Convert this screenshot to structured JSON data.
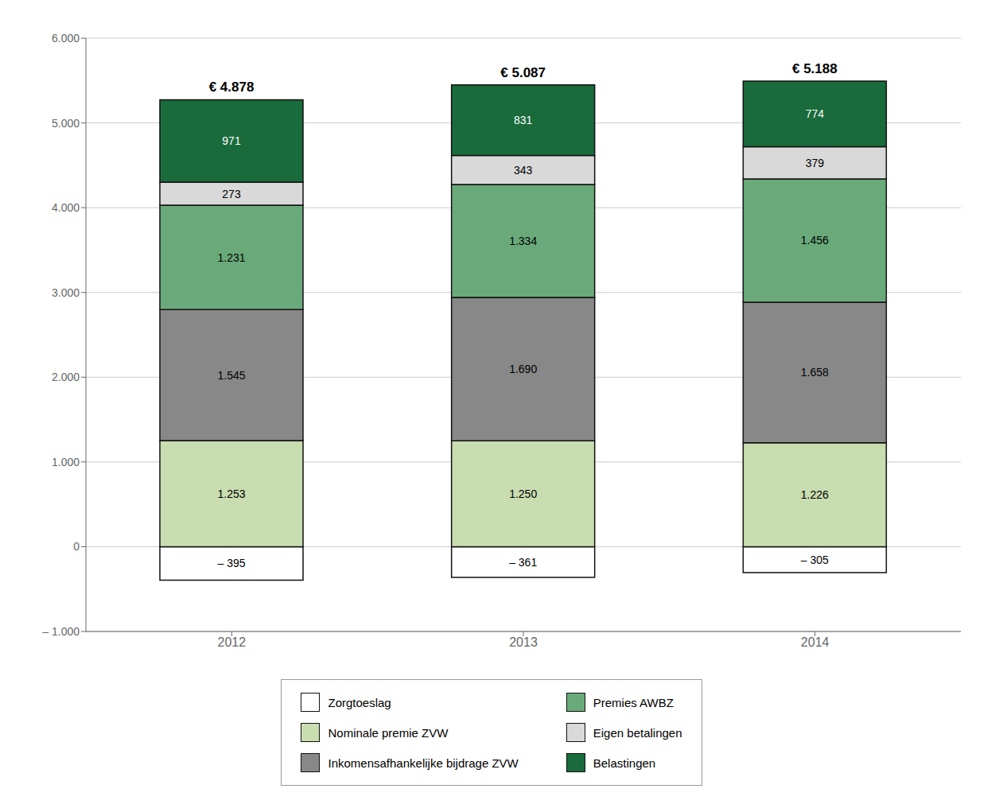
{
  "chart_data": {
    "type": "bar",
    "stacked": true,
    "categories": [
      "2012",
      "2013",
      "2014"
    ],
    "series": [
      {
        "name": "Zorgtoeslag",
        "color": "#ffffff",
        "values": [
          -395,
          -361,
          -305
        ],
        "value_labels": [
          "– 395",
          "– 361",
          "– 305"
        ]
      },
      {
        "name": "Nominale premie ZVW",
        "color": "#c8ddb0",
        "values": [
          1253,
          1250,
          1226
        ],
        "value_labels": [
          "1.253",
          "1.250",
          "1.226"
        ]
      },
      {
        "name": "Inkomensafhankelijke bijdrage ZVW",
        "color": "#888888",
        "values": [
          1545,
          1690,
          1658
        ],
        "value_labels": [
          "1.545",
          "1.690",
          "1.658"
        ]
      },
      {
        "name": "Premies AWBZ",
        "color": "#6aaa7a",
        "values": [
          1231,
          1334,
          1456
        ],
        "value_labels": [
          "1.231",
          "1.334",
          "1.456"
        ]
      },
      {
        "name": "Eigen betalingen",
        "color": "#d9d9d9",
        "values": [
          273,
          343,
          379
        ]
      },
      {
        "name": "Belastingen",
        "color": "#1a6b3c",
        "values": [
          971,
          831,
          774
        ]
      }
    ],
    "data_labels": true,
    "grid": true,
    "legend": "bottom",
    "ylim": [
      -1000,
      6000
    ],
    "yticks": [
      {
        "value": -1000,
        "label": "– 1.000"
      },
      0,
      {
        "value": 1000,
        "label": "1.000"
      },
      {
        "value": 2000,
        "label": "2.000"
      },
      {
        "value": 3000,
        "label": "3.000"
      },
      {
        "value": 4000,
        "label": "4.000"
      },
      {
        "value": 5000,
        "label": "5.000"
      },
      {
        "value": 6000,
        "label": "6.000"
      }
    ],
    "annotations": [
      {
        "category": "2012",
        "label": "€ 4.878"
      },
      {
        "category": "2013",
        "label": "€ 5.087"
      },
      {
        "category": "2014",
        "label": "€ 5.188"
      }
    ]
  }
}
